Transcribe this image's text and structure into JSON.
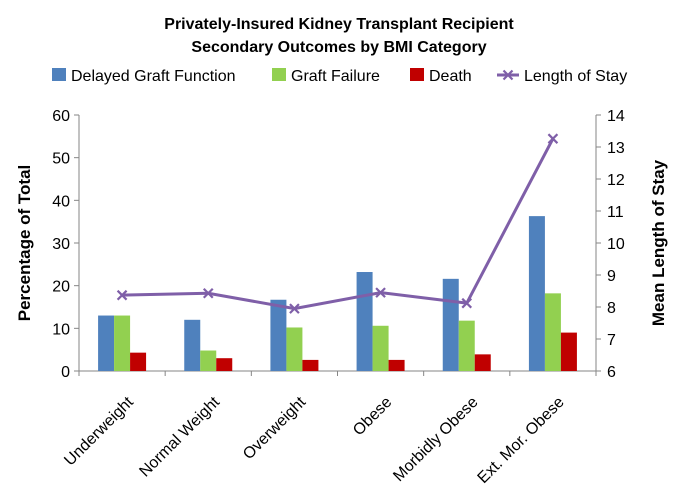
{
  "chart_data": {
    "type": "bar",
    "title": [
      "Privately-Insured Kidney Transplant Recipient",
      "Secondary Outcomes by BMI Category"
    ],
    "categories": [
      "Underweight",
      "Normal Weight",
      "Overweight",
      "Obese",
      "Morbidly Obese",
      "Ext. Mor. Obese"
    ],
    "series": [
      {
        "name": "Delayed Graft Function",
        "type": "bar",
        "axis": "left",
        "color": "#4F81BD",
        "values": [
          13.0,
          12.0,
          16.7,
          23.2,
          21.6,
          36.3
        ]
      },
      {
        "name": "Graft Failure",
        "type": "bar",
        "axis": "left",
        "color": "#92D050",
        "values": [
          13.0,
          4.8,
          10.2,
          10.6,
          11.8,
          18.2
        ]
      },
      {
        "name": "Death",
        "type": "bar",
        "axis": "left",
        "color": "#C00000",
        "values": [
          4.3,
          3.0,
          2.6,
          2.6,
          3.9,
          9.0
        ]
      },
      {
        "name": "Length of Stay",
        "type": "line",
        "axis": "right",
        "color": "#7F5FA8",
        "marker": "x",
        "values": [
          8.37,
          8.43,
          7.95,
          8.45,
          8.12,
          13.26
        ]
      }
    ],
    "ylabel": "Percentage of Total",
    "y2label": "Mean Length of Stay",
    "ylim": [
      0,
      60
    ],
    "y2lim": [
      6,
      14
    ],
    "yticks": [
      0,
      10,
      20,
      30,
      40,
      50,
      60
    ],
    "y2ticks": [
      6,
      7,
      8,
      9,
      10,
      11,
      12,
      13,
      14
    ],
    "legend_position": "top",
    "grid": false
  }
}
